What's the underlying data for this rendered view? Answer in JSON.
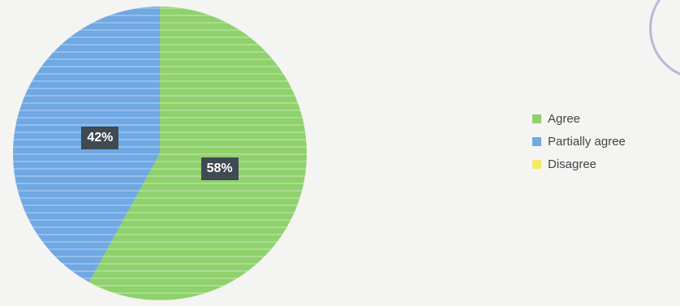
{
  "chart_data": {
    "type": "pie",
    "title": "",
    "categories": [
      "Agree",
      "Partially agree",
      "Disagree"
    ],
    "values": [
      58,
      42,
      0
    ],
    "data_labels": [
      "58%",
      "42%",
      ""
    ],
    "colors": [
      "#8fd16c",
      "#6fa8e3",
      "#f2ec6b"
    ],
    "start_angle_deg": 0,
    "direction": "clockwise",
    "legend_position": "right"
  }
}
